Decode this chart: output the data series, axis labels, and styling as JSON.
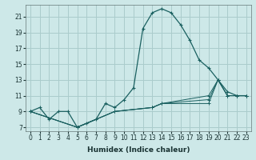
{
  "background_color": "#cde8e8",
  "grid_color": "#aacccc",
  "line_color": "#1a6060",
  "marker_color": "#1a6060",
  "xlabel": "Humidex (Indice chaleur)",
  "xlim": [
    -0.5,
    23.5
  ],
  "ylim": [
    6.5,
    22.5
  ],
  "xticks": [
    0,
    1,
    2,
    3,
    4,
    5,
    6,
    7,
    8,
    9,
    10,
    11,
    12,
    13,
    14,
    15,
    16,
    17,
    18,
    19,
    20,
    21,
    22,
    23
  ],
  "yticks": [
    7,
    9,
    11,
    13,
    15,
    17,
    19,
    21
  ],
  "series": [
    {
      "x": [
        0,
        1,
        2,
        3,
        4,
        5,
        6,
        7,
        8,
        9,
        10,
        11,
        12,
        13,
        14,
        15,
        16,
        17,
        18,
        19,
        20,
        21,
        22,
        23
      ],
      "y": [
        9,
        9.5,
        8,
        9,
        9,
        7,
        7.5,
        8,
        10,
        9.5,
        10.5,
        12,
        19.5,
        21.5,
        22,
        21.5,
        20,
        18,
        15.5,
        14.5,
        13,
        11.5,
        11,
        11
      ]
    },
    {
      "x": [
        0,
        5,
        9,
        13,
        14,
        19,
        20,
        21,
        22,
        23
      ],
      "y": [
        9,
        7,
        9,
        9.5,
        10,
        11,
        13,
        11,
        11,
        11
      ]
    },
    {
      "x": [
        0,
        5,
        9,
        13,
        14,
        19,
        20,
        21,
        22,
        23
      ],
      "y": [
        9,
        7,
        9,
        9.5,
        10,
        10.5,
        13,
        11,
        11,
        11
      ]
    },
    {
      "x": [
        0,
        5,
        9,
        13,
        14,
        19,
        20,
        21,
        22,
        23
      ],
      "y": [
        9,
        7,
        9,
        9.5,
        10,
        10,
        13,
        11,
        11,
        11
      ]
    }
  ]
}
